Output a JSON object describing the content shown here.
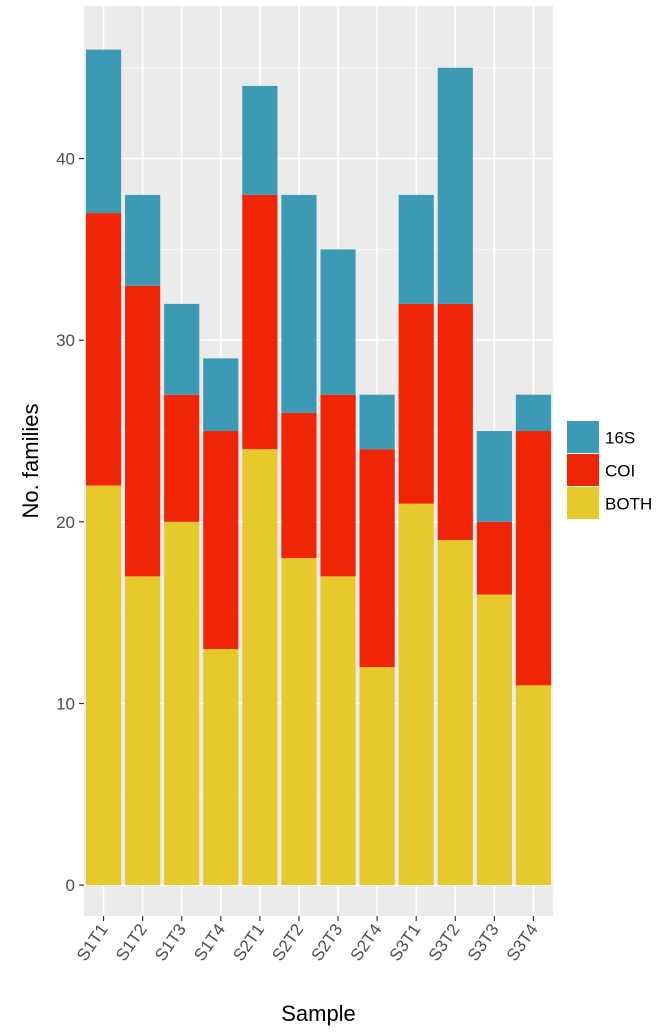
{
  "chart_data": {
    "type": "bar",
    "stacked": true,
    "xlabel": "Sample",
    "ylabel": "No. families",
    "ylim": [
      -1.7,
      48.4
    ],
    "yticks": [
      0,
      10,
      20,
      30,
      40
    ],
    "grid": true,
    "legend_position": "right",
    "categories": [
      "S1T1",
      "S1T2",
      "S1T3",
      "S1T4",
      "S2T1",
      "S2T2",
      "S2T3",
      "S2T4",
      "S3T1",
      "S3T2",
      "S3T3",
      "S3T4"
    ],
    "series": [
      {
        "name": "BOTH",
        "color": "#E8C92C",
        "values": [
          22,
          17,
          20,
          13,
          24,
          18,
          17,
          12,
          21,
          19,
          16,
          11
        ]
      },
      {
        "name": "COI",
        "color": "#F02506",
        "values": [
          15,
          16,
          7,
          12,
          14,
          8,
          10,
          12,
          11,
          13,
          4,
          14
        ]
      },
      {
        "name": "16S",
        "color": "#3D9AB5",
        "values": [
          9,
          5,
          5,
          4,
          6,
          12,
          8,
          3,
          6,
          13,
          5,
          2
        ]
      }
    ],
    "legend_order": [
      "16S",
      "COI",
      "BOTH"
    ]
  }
}
